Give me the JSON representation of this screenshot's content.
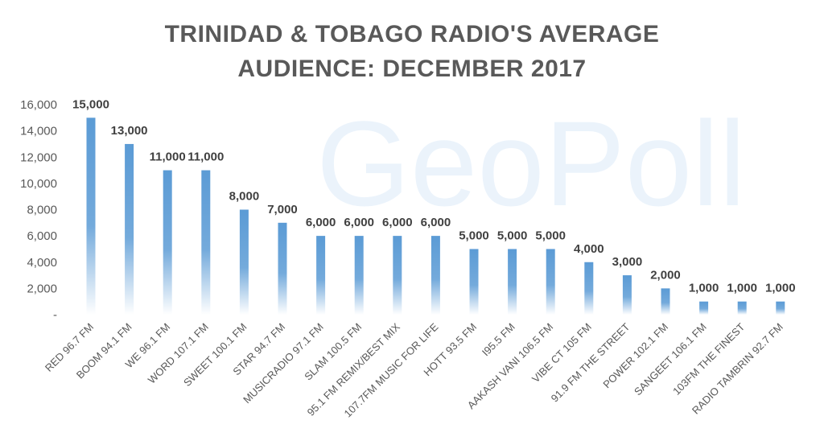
{
  "chart_data": {
    "type": "bar",
    "title_line1": "TRINIDAD & TOBAGO RADIO'S AVERAGE",
    "title_line2": "AUDIENCE: DECEMBER 2017",
    "watermark": "GeoPoll",
    "categories": [
      "RED 96.7 FM",
      "BOOM 94.1 FM",
      "WE 96.1 FM",
      "WORD 107.1 FM",
      "SWEET 100.1 FM",
      "STAR 94.7 FM",
      "MUSICRADIO 97.1 FM",
      "SLAM 100.5 FM",
      "95.1 FM REMIX/BEST MIX",
      "107.7FM MUSIC FOR LIFE",
      "HOTT 93.5 FM",
      "I95.5 FM",
      "AAKASH VANI 106.5 FM",
      "VIBE CT 105 FM",
      "91.9 FM THE STREET",
      "POWER 102.1 FM",
      "SANGEET 106.1 FM",
      "103FM THE FINEST",
      "RADIO TAMBRIN 92.7 FM"
    ],
    "values": [
      15000,
      13000,
      11000,
      11000,
      8000,
      7000,
      6000,
      6000,
      6000,
      6000,
      5000,
      5000,
      5000,
      4000,
      3000,
      2000,
      1000,
      1000,
      1000
    ],
    "data_labels": [
      "15,000",
      "13,000",
      "11,000",
      "11,000",
      "8,000",
      "7,000",
      "6,000",
      "6,000",
      "6,000",
      "6,000",
      "5,000",
      "5,000",
      "5,000",
      "4,000",
      "3,000",
      "2,000",
      "1,000",
      "1,000",
      "1,000"
    ],
    "ylim": [
      0,
      16000
    ],
    "yticks": [
      0,
      2000,
      4000,
      6000,
      8000,
      10000,
      12000,
      14000,
      16000
    ],
    "ytick_labels": [
      "-",
      "2,000",
      "4,000",
      "6,000",
      "8,000",
      "10,000",
      "12,000",
      "14,000",
      "16,000"
    ],
    "bar_color": "#5b9bd5",
    "grid": false,
    "legend": "none"
  }
}
